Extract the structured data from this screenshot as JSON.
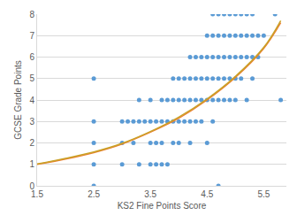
{
  "chart_data": {
    "type": "scatter",
    "x_label": "KS2 Fine Points Score",
    "y_label": "GCSE Grade Points",
    "xlim": [
      1.5,
      5.9
    ],
    "xticks": [
      1.5,
      2.5,
      3.5,
      4.5,
      5.5
    ],
    "ylim": [
      0,
      8
    ],
    "yticks": [
      0,
      1,
      2,
      3,
      4,
      5,
      6,
      7,
      8
    ],
    "grid": true,
    "series": [
      {
        "type": "scatter",
        "marker": "circle",
        "color": "#5b9bd5",
        "x": [
          2.5,
          2.5,
          2.5,
          2.5,
          2.5,
          3.0,
          3.0,
          3.0,
          3.1,
          3.2,
          3.2,
          3.3,
          3.3,
          3.3,
          3.4,
          3.5,
          3.5,
          3.5,
          3.5,
          3.6,
          3.6,
          3.6,
          3.7,
          3.7,
          3.7,
          3.7,
          3.8,
          3.8,
          3.8,
          3.9,
          3.9,
          3.9,
          3.9,
          4.0,
          4.0,
          4.0,
          4.0,
          4.1,
          4.1,
          4.1,
          4.2,
          4.2,
          4.2,
          4.2,
          4.2,
          4.3,
          4.3,
          4.3,
          4.3,
          4.4,
          4.4,
          4.4,
          4.4,
          4.5,
          4.5,
          4.5,
          4.5,
          4.5,
          4.6,
          4.6,
          4.6,
          4.6,
          4.6,
          4.6,
          4.7,
          4.7,
          4.7,
          4.7,
          4.7,
          4.7,
          4.8,
          4.8,
          4.8,
          4.8,
          4.8,
          4.9,
          4.9,
          4.9,
          4.9,
          4.9,
          5.0,
          5.0,
          5.0,
          5.0,
          5.0,
          5.1,
          5.1,
          5.1,
          5.1,
          5.2,
          5.2,
          5.2,
          5.2,
          5.3,
          5.3,
          5.3,
          5.3,
          5.4,
          5.4,
          5.5,
          5.7,
          5.8
        ],
        "y": [
          0,
          1,
          2,
          3,
          5,
          1,
          2,
          3,
          3,
          2,
          3,
          1,
          3,
          4,
          3,
          1,
          2,
          3,
          4,
          1,
          2,
          3,
          1,
          2,
          3,
          4,
          1,
          3,
          4,
          2,
          3,
          4,
          5,
          2,
          3,
          4,
          5,
          3,
          4,
          5,
          2,
          3,
          4,
          5,
          6,
          3,
          4,
          5,
          6,
          3,
          4,
          5,
          6,
          2,
          4,
          5,
          6,
          7,
          3,
          4,
          5,
          6,
          7,
          8,
          0,
          4,
          5,
          6,
          7,
          8,
          4,
          5,
          6,
          7,
          8,
          4,
          5,
          6,
          7,
          8,
          4,
          5,
          6,
          7,
          8,
          5,
          6,
          7,
          8,
          4,
          6,
          7,
          8,
          5,
          6,
          7,
          8,
          6,
          7,
          7,
          8,
          4
        ]
      },
      {
        "type": "line",
        "line_style": "solid",
        "color": "#ed7d31",
        "x": [
          1.5,
          2.0,
          2.5,
          3.0,
          3.5,
          4.0,
          4.5,
          5.0,
          5.5,
          5.8
        ],
        "y": [
          1.0,
          1.25,
          1.55,
          1.95,
          2.5,
          3.15,
          4.0,
          5.05,
          6.4,
          7.6
        ]
      },
      {
        "type": "line",
        "line_style": "solid",
        "color": "#c9a227",
        "x": [
          1.5,
          2.0,
          2.5,
          3.0,
          3.5,
          4.0,
          4.5,
          5.0,
          5.5,
          5.8
        ],
        "y": [
          1.02,
          1.28,
          1.58,
          1.98,
          2.53,
          3.2,
          4.05,
          5.1,
          6.45,
          7.7
        ]
      }
    ]
  }
}
